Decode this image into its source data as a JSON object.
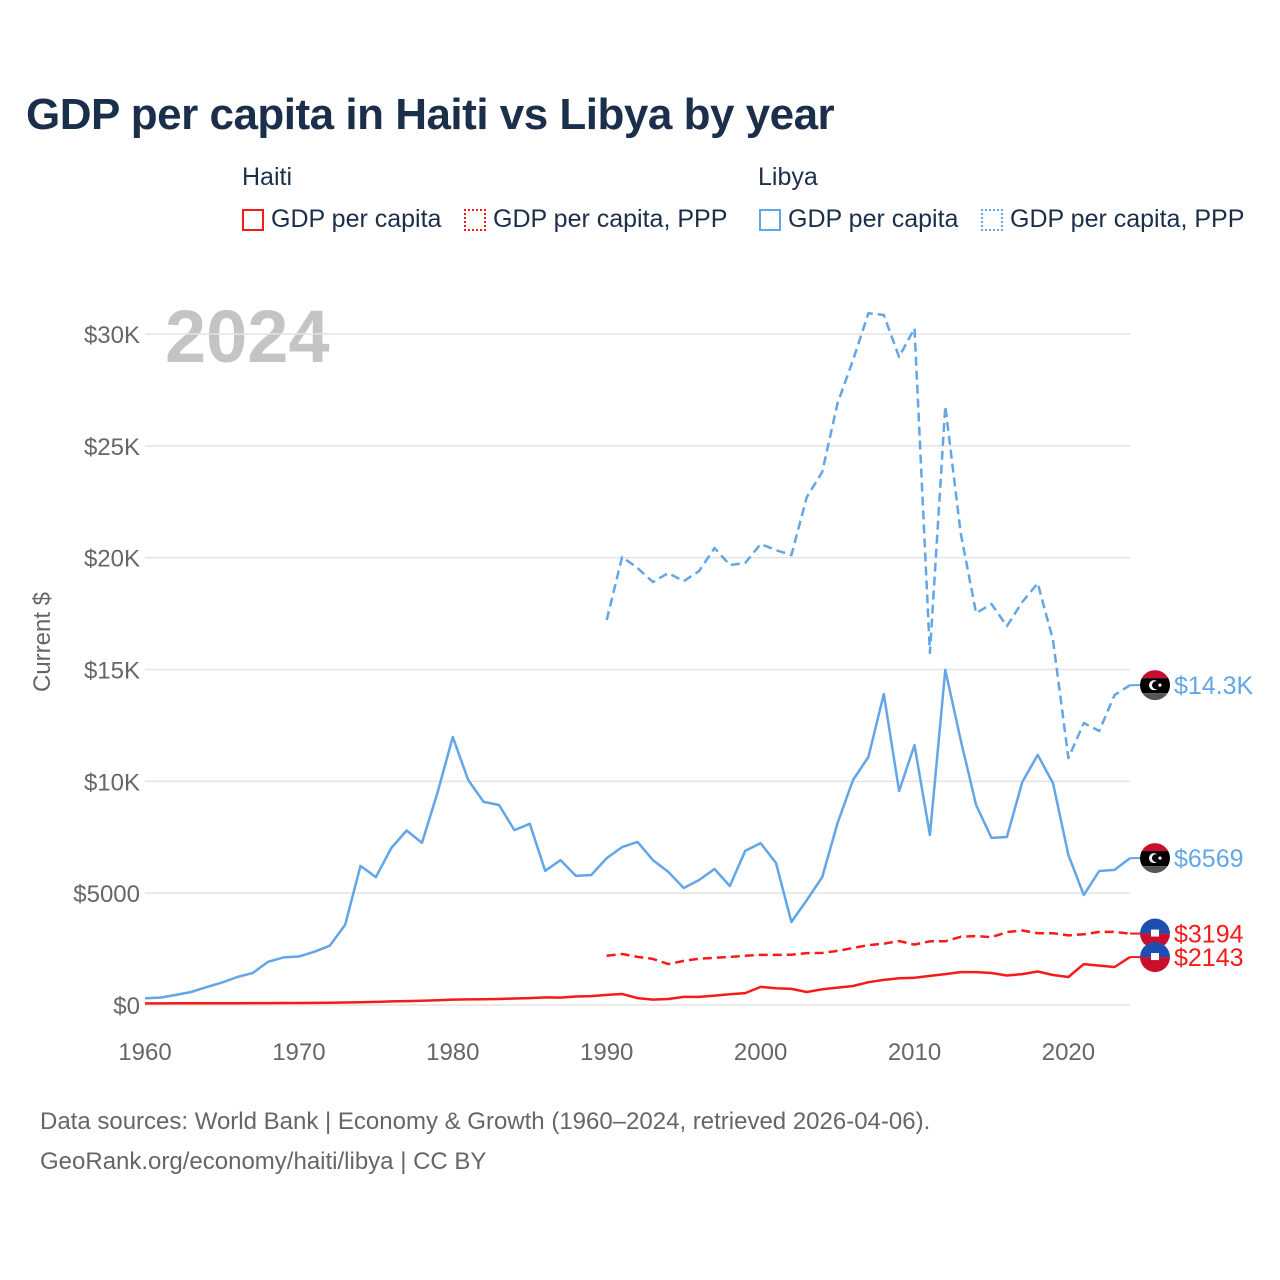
{
  "chart_data": {
    "type": "line",
    "title": "GDP per capita in Haiti vs Libya by year",
    "ylabel": "Current $",
    "xlabel": "",
    "year_label": "2024",
    "xlim": [
      1960,
      2024
    ],
    "ylim": [
      0,
      31000
    ],
    "x_ticks": [
      1960,
      1970,
      1980,
      1990,
      2000,
      2010,
      2020
    ],
    "y_ticks": [
      0,
      5000,
      10000,
      15000,
      20000,
      25000,
      30000
    ],
    "y_tick_labels": [
      "$0",
      "$5000",
      "$10K",
      "$15K",
      "$20K",
      "$25K",
      "$30K"
    ],
    "grid": true,
    "legend_groups": [
      {
        "label": "Haiti",
        "items": [
          "GDP per capita",
          "GDP per capita, PPP"
        ]
      },
      {
        "label": "Libya",
        "items": [
          "GDP per capita",
          "GDP per capita, PPP"
        ]
      }
    ],
    "colors": {
      "haiti": "#f71a1a",
      "libya": "#62a6e8"
    },
    "series": [
      {
        "name": "Libya GDP per capita, PPP",
        "country": "libya",
        "dashed": true,
        "start": 1990,
        "end_label": "$14.3K",
        "values": [
          17210,
          20030,
          19540,
          18910,
          19310,
          18950,
          19400,
          20430,
          19670,
          19760,
          20610,
          20340,
          20120,
          22710,
          23830,
          26910,
          28830,
          30930,
          30850,
          28970,
          30260,
          15740,
          26780,
          21100,
          17520,
          17930,
          16940,
          18020,
          18860,
          16320,
          11040,
          12610,
          12250,
          13860,
          14300
        ]
      },
      {
        "name": "Libya GDP per capita",
        "country": "libya",
        "dashed": false,
        "start": 1960,
        "end_label": "$6569",
        "values": [
          300,
          330,
          450,
          580,
          800,
          1000,
          1250,
          1430,
          1930,
          2130,
          2170,
          2380,
          2650,
          3580,
          6220,
          5720,
          7020,
          7800,
          7250,
          9480,
          11980,
          10060,
          9080,
          8940,
          7820,
          8100,
          6000,
          6480,
          5770,
          5810,
          6570,
          7060,
          7290,
          6480,
          5950,
          5230,
          5590,
          6080,
          5320,
          6890,
          7240,
          6350,
          3710,
          4690,
          5720,
          8140,
          10060,
          11090,
          13900,
          9570,
          11620,
          7600,
          14980,
          11850,
          8940,
          7470,
          7510,
          9970,
          11180,
          9920,
          6700,
          4920,
          5990,
          6040,
          6569
        ]
      },
      {
        "name": "Haiti GDP per capita, PPP",
        "country": "haiti",
        "dashed": true,
        "start": 1990,
        "end_label": "$3194",
        "values": [
          2200,
          2280,
          2150,
          2060,
          1830,
          1970,
          2070,
          2110,
          2150,
          2200,
          2240,
          2240,
          2250,
          2320,
          2330,
          2420,
          2550,
          2680,
          2740,
          2860,
          2700,
          2850,
          2850,
          3050,
          3080,
          3030,
          3260,
          3330,
          3210,
          3210,
          3110,
          3160,
          3270,
          3270,
          3194
        ]
      },
      {
        "name": "Haiti GDP per capita",
        "country": "haiti",
        "dashed": false,
        "start": 1960,
        "end_label": "$2143",
        "values": [
          70,
          72,
          74,
          76,
          78,
          80,
          82,
          84,
          86,
          88,
          90,
          95,
          100,
          110,
          125,
          140,
          160,
          175,
          190,
          210,
          240,
          250,
          260,
          270,
          290,
          310,
          340,
          330,
          380,
          400,
          450,
          490,
          310,
          240,
          270,
          360,
          360,
          420,
          480,
          530,
          810,
          750,
          720,
          580,
          700,
          780,
          850,
          1020,
          1120,
          1200,
          1220,
          1300,
          1380,
          1470,
          1470,
          1430,
          1320,
          1380,
          1500,
          1340,
          1250,
          1830,
          1760,
          1700,
          2143
        ]
      }
    ]
  },
  "footer": {
    "line1": "Data sources: World Bank | Economy & Growth (1960–2024, retrieved 2026-04-06).",
    "line2": "GeoRank.org/economy/haiti/libya | CC BY"
  }
}
